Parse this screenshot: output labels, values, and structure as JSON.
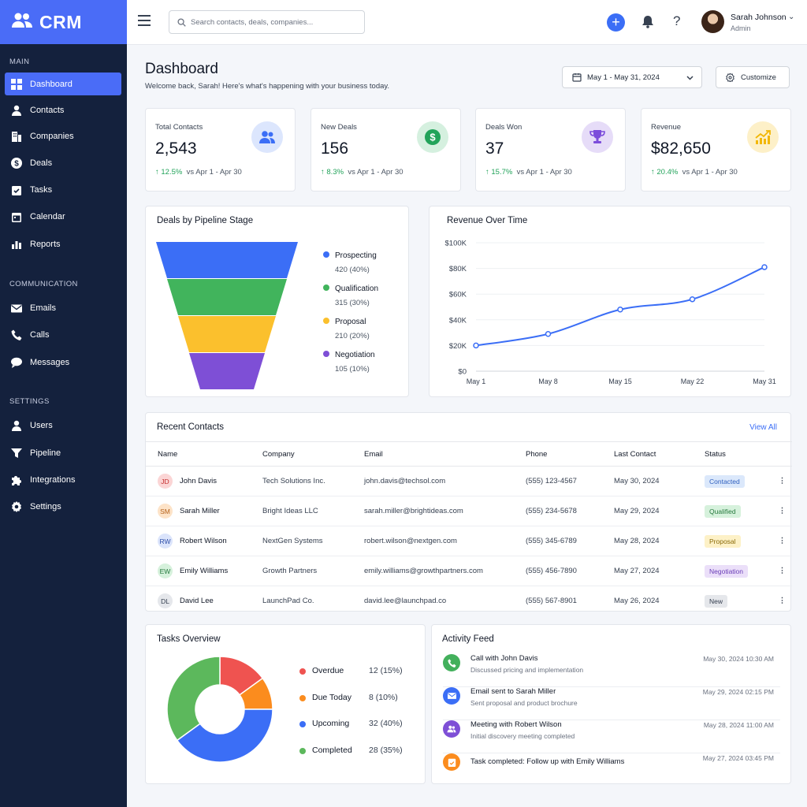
{
  "brand": {
    "name": "CRM"
  },
  "sidebar": {
    "sections": [
      {
        "label": "MAIN",
        "items": [
          {
            "label": "Dashboard",
            "icon": "grid-icon",
            "active": true
          },
          {
            "label": "Contacts",
            "icon": "person-icon"
          },
          {
            "label": "Companies",
            "icon": "building-icon"
          },
          {
            "label": "Deals",
            "icon": "dollar-icon"
          },
          {
            "label": "Tasks",
            "icon": "clipboard-check-icon"
          },
          {
            "label": "Calendar",
            "icon": "calendar-icon"
          },
          {
            "label": "Reports",
            "icon": "bar-chart-icon"
          }
        ]
      },
      {
        "label": "COMMUNICATION",
        "items": [
          {
            "label": "Emails",
            "icon": "envelope-icon"
          },
          {
            "label": "Calls",
            "icon": "phone-icon"
          },
          {
            "label": "Messages",
            "icon": "chat-bubble-icon"
          }
        ]
      },
      {
        "label": "SETTINGS",
        "items": [
          {
            "label": "Users",
            "icon": "person-icon"
          },
          {
            "label": "Pipeline",
            "icon": "funnel-icon"
          },
          {
            "label": "Integrations",
            "icon": "puzzle-icon"
          },
          {
            "label": "Settings",
            "icon": "gear-icon"
          }
        ]
      }
    ]
  },
  "topbar": {
    "search_placeholder": "Search contacts, deals, companies...",
    "user_name": "Sarah Johnson",
    "user_role": "Admin"
  },
  "page": {
    "title": "Dashboard",
    "subtitle": "Welcome back, Sarah! Here's what's happening with your business today.",
    "date_range": "May 1 - May 31, 2024",
    "customize_label": "Customize"
  },
  "kpis": [
    {
      "label": "Total Contacts",
      "value": "2,543",
      "delta": "12.5%",
      "compare": "vs Apr 1 - Apr 30",
      "icon": "users-icon",
      "color": "#3b6ef6",
      "bg": "#dce6fd"
    },
    {
      "label": "New Deals",
      "value": "156",
      "delta": "8.3%",
      "compare": "vs Apr 1 - Apr 30",
      "icon": "dollar-icon",
      "color": "#22a35a",
      "bg": "#d5f0df"
    },
    {
      "label": "Deals Won",
      "value": "37",
      "delta": "15.7%",
      "compare": "vs Apr 1 - Apr 30",
      "icon": "trophy-icon",
      "color": "#7c4ddb",
      "bg": "#e6dcf8"
    },
    {
      "label": "Revenue",
      "value": "$82,650",
      "delta": "20.4%",
      "compare": "vs Apr 1 - Apr 30",
      "icon": "trend-up-icon",
      "color": "#f2b705",
      "bg": "#fdf0c8"
    }
  ],
  "pipeline": {
    "title": "Deals by Pipeline Stage",
    "chart_data": {
      "type": "funnel",
      "stages": [
        {
          "name": "Prospecting",
          "label": "420 (40%)",
          "value": 420,
          "percent": 40,
          "color": "#3b6ef6"
        },
        {
          "name": "Qualification",
          "label": "315 (30%)",
          "value": 315,
          "percent": 30,
          "color": "#41b45c"
        },
        {
          "name": "Proposal",
          "label": "210 (20%)",
          "value": 210,
          "percent": 20,
          "color": "#fbc02d"
        },
        {
          "name": "Negotiation",
          "label": "105 (10%)",
          "value": 105,
          "percent": 10,
          "color": "#7e4fd6"
        }
      ]
    }
  },
  "revenue": {
    "title": "Revenue Over Time",
    "chart_data": {
      "type": "line",
      "categories": [
        "May 1",
        "May 8",
        "May 15",
        "May 22",
        "May 31"
      ],
      "values": [
        20000,
        29000,
        48000,
        56000,
        81000
      ],
      "ylim": [
        0,
        100000
      ],
      "yticks": [
        "$0",
        "$20K",
        "$40K",
        "$60K",
        "$80K",
        "$100K"
      ],
      "grid": true,
      "color": "#3b6ef6"
    }
  },
  "contacts": {
    "title": "Recent Contacts",
    "view_all": "View All",
    "columns": [
      "Name",
      "Company",
      "Email",
      "Phone",
      "Last Contact",
      "Status"
    ],
    "rows": [
      {
        "initials": "JD",
        "name": "John Davis",
        "company": "Tech Solutions Inc.",
        "email": "john.davis@techsol.com",
        "phone": "(555) 123-4567",
        "last": "May 30, 2024",
        "status": "Contacted",
        "ini_bg": "#fbd5d5",
        "ini_fg": "#c53030",
        "badge_bg": "#dbe8fb",
        "badge_fg": "#2f5fbf"
      },
      {
        "initials": "SM",
        "name": "Sarah Miller",
        "company": "Bright Ideas LLC",
        "email": "sarah.miller@brightideas.com",
        "phone": "(555) 234-5678",
        "last": "May 29, 2024",
        "status": "Qualified",
        "ini_bg": "#fde3c8",
        "ini_fg": "#b5621b",
        "badge_bg": "#d6f1dc",
        "badge_fg": "#277a3e"
      },
      {
        "initials": "RW",
        "name": "Robert Wilson",
        "company": "NextGen Systems",
        "email": "robert.wilson@nextgen.com",
        "phone": "(555) 345-6789",
        "last": "May 28, 2024",
        "status": "Proposal",
        "ini_bg": "#dbe4fb",
        "ini_fg": "#2f4fa8",
        "badge_bg": "#fdf1c7",
        "badge_fg": "#8a6a08"
      },
      {
        "initials": "EW",
        "name": "Emily Williams",
        "company": "Growth Partners",
        "email": "emily.williams@growthpartners.com",
        "phone": "(555) 456-7890",
        "last": "May 27, 2024",
        "status": "Negotiation",
        "ini_bg": "#d6f1dc",
        "ini_fg": "#277a3e",
        "badge_bg": "#ebdff9",
        "badge_fg": "#6b3fb8"
      },
      {
        "initials": "DL",
        "name": "David Lee",
        "company": "LaunchPad Co.",
        "email": "david.lee@launchpad.co",
        "phone": "(555) 567-8901",
        "last": "May 26, 2024",
        "status": "New",
        "ini_bg": "#e5e7eb",
        "ini_fg": "#374151",
        "badge_bg": "#e5e7eb",
        "badge_fg": "#374151"
      }
    ]
  },
  "tasks": {
    "title": "Tasks Overview",
    "chart_data": {
      "type": "donut",
      "slices": [
        {
          "name": "Overdue",
          "label": "12 (15%)",
          "value": 12,
          "percent": 15,
          "color": "#ef5350"
        },
        {
          "name": "Due Today",
          "label": "8 (10%)",
          "value": 8,
          "percent": 10,
          "color": "#fb8c1e"
        },
        {
          "name": "Upcoming",
          "label": "32 (40%)",
          "value": 32,
          "percent": 40,
          "color": "#3b6ef6"
        },
        {
          "name": "Completed",
          "label": "28 (35%)",
          "value": 28,
          "percent": 35,
          "color": "#5cb85c"
        }
      ]
    }
  },
  "activity": {
    "title": "Activity Feed",
    "items": [
      {
        "title": "Call with John Davis",
        "desc": "Discussed pricing and implementation",
        "time": "May 30, 2024 10:30 AM",
        "icon": "phone-icon",
        "color": "#43b05c"
      },
      {
        "title": "Email sent to Sarah Miller",
        "desc": "Sent proposal and product brochure",
        "time": "May 29, 2024 02:15 PM",
        "icon": "envelope-icon",
        "color": "#3b6ef6"
      },
      {
        "title": "Meeting with Robert Wilson",
        "desc": "Initial discovery meeting completed",
        "time": "May 28, 2024 11:00 AM",
        "icon": "people-icon",
        "color": "#7e4fd6"
      },
      {
        "title": "Task completed: Follow up with Emily Williams",
        "desc": "",
        "time": "May 27, 2024 03:45 PM",
        "icon": "clipboard-check-icon",
        "color": "#fb8c1e"
      }
    ]
  }
}
